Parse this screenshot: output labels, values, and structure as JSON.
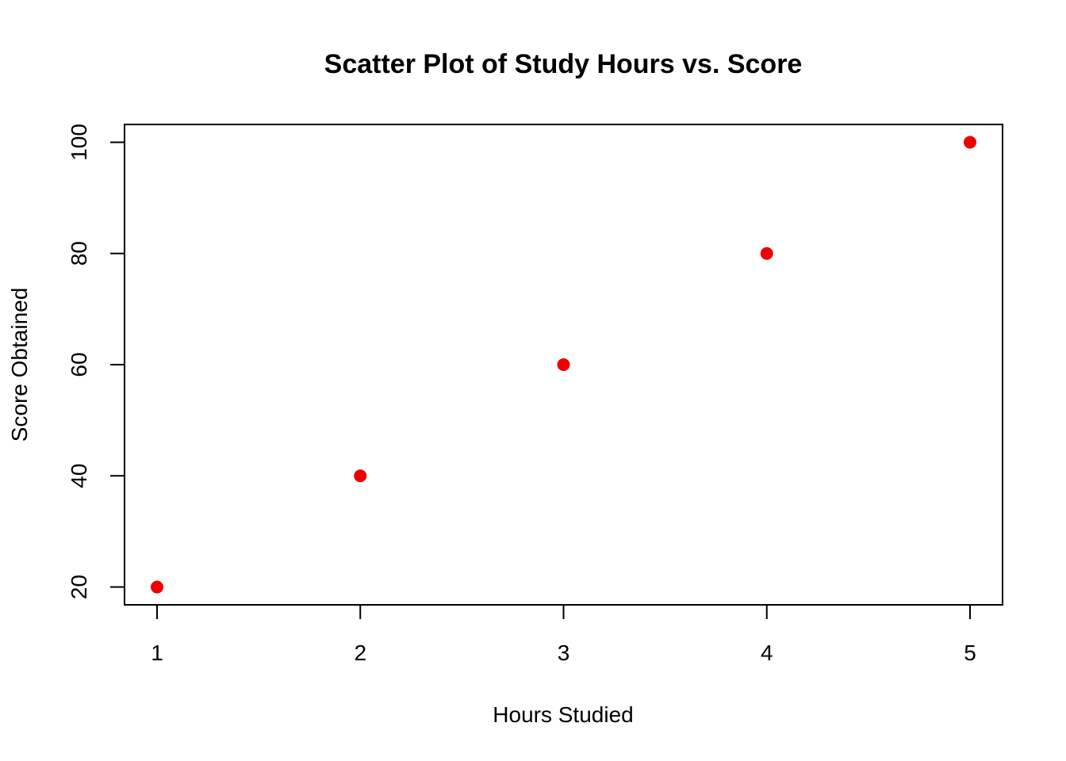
{
  "chart_data": {
    "type": "scatter",
    "title": "Scatter Plot of Study Hours vs. Score",
    "xlabel": "Hours Studied",
    "ylabel": "Score Obtained",
    "x": [
      1,
      2,
      3,
      4,
      5
    ],
    "y": [
      20,
      40,
      60,
      80,
      100
    ],
    "xlim": [
      0.84,
      5.16
    ],
    "ylim": [
      16.8,
      103.2
    ],
    "xticks": [
      1,
      2,
      3,
      4,
      5
    ],
    "yticks": [
      20,
      40,
      60,
      80,
      100
    ],
    "grid": false,
    "point_color": "#ee0000"
  }
}
